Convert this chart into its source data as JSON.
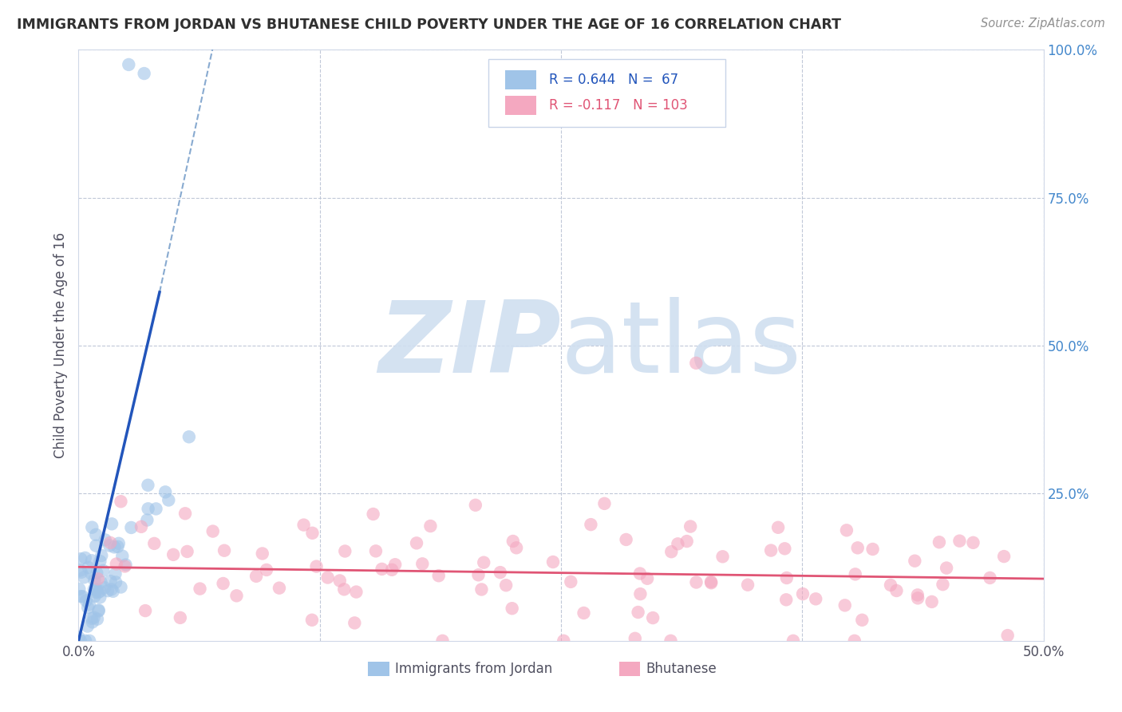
{
  "title": "IMMIGRANTS FROM JORDAN VS BHUTANESE CHILD POVERTY UNDER THE AGE OF 16 CORRELATION CHART",
  "source": "Source: ZipAtlas.com",
  "ylabel": "Child Poverty Under the Age of 16",
  "xlim": [
    0.0,
    0.5
  ],
  "ylim": [
    0.0,
    1.0
  ],
  "ytick_labels": [
    "",
    "25.0%",
    "50.0%",
    "75.0%",
    "100.0%"
  ],
  "jordan_R": 0.644,
  "jordan_N": 67,
  "bhutan_R": -0.117,
  "bhutan_N": 103,
  "jordan_color": "#a0c4e8",
  "bhutan_color": "#f4a8c0",
  "jordan_line_color": "#2255bb",
  "bhutan_line_color": "#e05575",
  "dash_line_color": "#88aad0",
  "background_color": "#ffffff",
  "grid_color": "#c0c8d8",
  "watermark_color": "#d0dff0",
  "title_color": "#303030",
  "axis_label_color": "#4488cc",
  "legend_text_blue": "#2255bb",
  "legend_text_pink": "#e05575"
}
